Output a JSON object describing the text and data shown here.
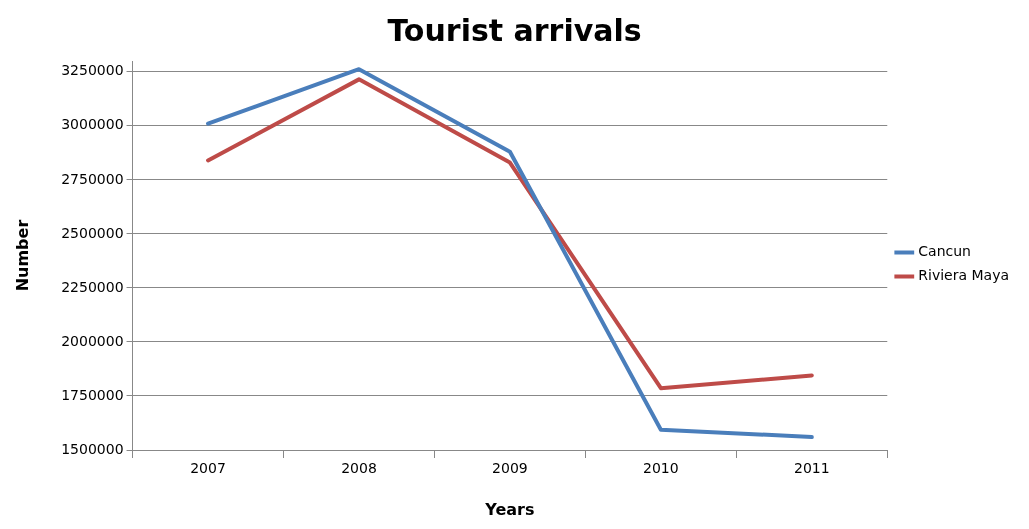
{
  "chart_data": {
    "type": "line",
    "title": "Tourist arrivals",
    "xlabel": "Years",
    "ylabel": "Number",
    "categories": [
      "2007",
      "2008",
      "2009",
      "2010",
      "2011"
    ],
    "series": [
      {
        "name": "Cancun",
        "color": "#4a7ebb",
        "values": [
          3010000,
          3262000,
          2880000,
          1594000,
          1560000
        ]
      },
      {
        "name": "Riviera Maya",
        "color": "#be4b48",
        "values": [
          2840000,
          3215000,
          2830000,
          1786000,
          1845000
        ]
      }
    ],
    "ylim": [
      1500000,
      3300000
    ],
    "yticks": [
      1500000,
      1750000,
      2000000,
      2250000,
      2500000,
      2750000,
      3000000,
      3250000
    ],
    "grid": "y",
    "legend": "right",
    "marker": "none",
    "line_style": "solid"
  }
}
